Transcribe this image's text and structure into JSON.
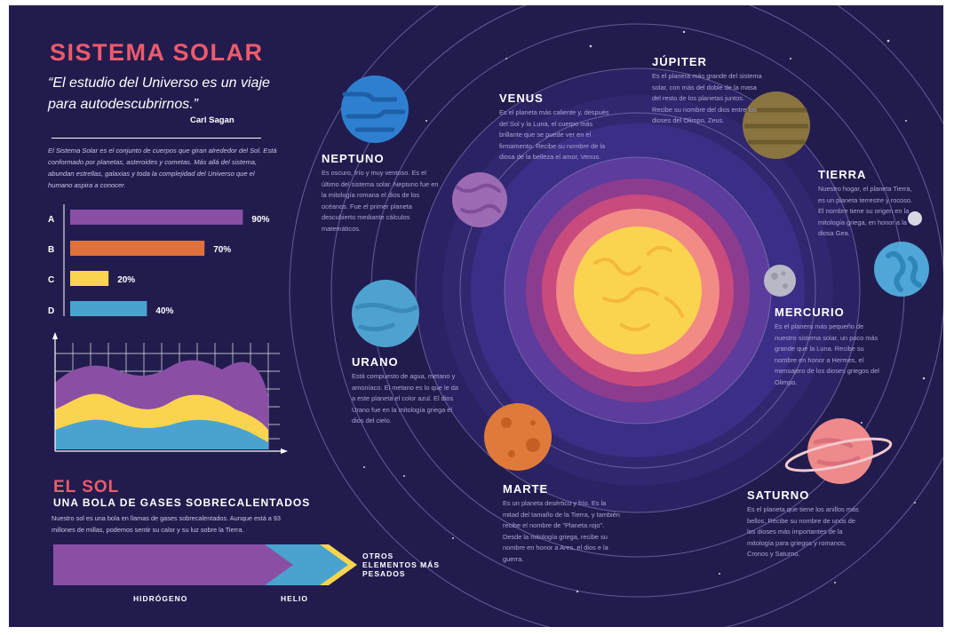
{
  "header": {
    "title": "SISTEMA SOLAR",
    "quote": "“El estudio del Universo es un viaje para autodescubrirnos.”",
    "author": "Carl Sagan",
    "intro": "El Sistema Solar es el conjunto de cuerpos que giran alrededor del Sol. Está conformado por planetas, asteroides y cometas. Más allá del sistema, abundan estrellas, galaxias y toda la complejidad del Universo que el humano aspira a conocer."
  },
  "chart_data": {
    "type": "bar",
    "categories": [
      "A",
      "B",
      "C",
      "D"
    ],
    "values": [
      90,
      70,
      20,
      40
    ],
    "value_labels": [
      "90%",
      "70%",
      "20%",
      "40%"
    ],
    "xlim": [
      0,
      100
    ],
    "colors": [
      "#8a4fa5",
      "#e0713c",
      "#fbd44f",
      "#4aa3cf"
    ]
  },
  "planets": {
    "neptuno": {
      "name": "NEPTUNO",
      "text": "Es oscuro, frío y muy ventoso. Es el último del sistema solar. Neptuno fue en la mitología romana el dios de los océanos. Fue el primer planeta descubierto mediante cálculos matemáticos."
    },
    "venus": {
      "name": "VENUS",
      "text": "Es el planeta más caliente y, después del Sol y la Luna, el cuerpo más brillante que se puede ver en el firmamento. Recibe su nombre de la diosa de la belleza el amor, Venus."
    },
    "jupiter": {
      "name": "JÚPITER",
      "text": "Es el planera más grande del sistema solar, con más del doble de la masa del resto de los planetas juntos. Recibe su nombre del dios entre los dioses del Olimpo, Zeus."
    },
    "tierra": {
      "name": "TIERRA",
      "text": "Nuestro hogar, el planeta Tierra, es un planeta terrestre y rocoso. El nombre tiene su origen en la mitología griega, en honor a la diosa Gea."
    },
    "mercurio": {
      "name": "MERCURIO",
      "text": "Es el planera más pequeño de nuestro sistema solar, un poco más grande que la Luna. Recibe su nombre en honor a Hermes, el mensajero de los dioses griegos del Olimpo."
    },
    "urano": {
      "name": "URANO",
      "text": "Está compuesto de agua, metano y amoníaco. El metano es lo que le da a este planeta el color azul. El dios Urano fue en la mitología griega el dios del cielo."
    },
    "marte": {
      "name": "MARTE",
      "text": "Es un planeta desértico y frío. Es la mitad del tamaño de la Tierra, y también recibe el nombre de \"Planeta rojo\". Desde la mitología griega, recibe su nombre en honor a Ares, el dios e la guerra."
    },
    "saturno": {
      "name": "SATURNO",
      "text": "Es el planeta que tiene los anillos más bellos. Recibe su nombre de unos de los dioses más importantes de la mitología para griegos y romanos, Cronos y Saturno."
    }
  },
  "sun": {
    "heading": "EL SOL",
    "subheading": "UNA BOLA DE GASES SOBRECALENTADOS",
    "description": "Nuestro sol es una bola en llamas de gases sobrecalentados. Aunque está a 93 millones de millas, podemos sentir su calor y su luz sobre la Tierra.",
    "composition": {
      "hydrogen": "HIDRÓGENO",
      "helium": "HELIO",
      "heavier": "OTROS ELEMENTOS MÁS PESADOS"
    }
  }
}
